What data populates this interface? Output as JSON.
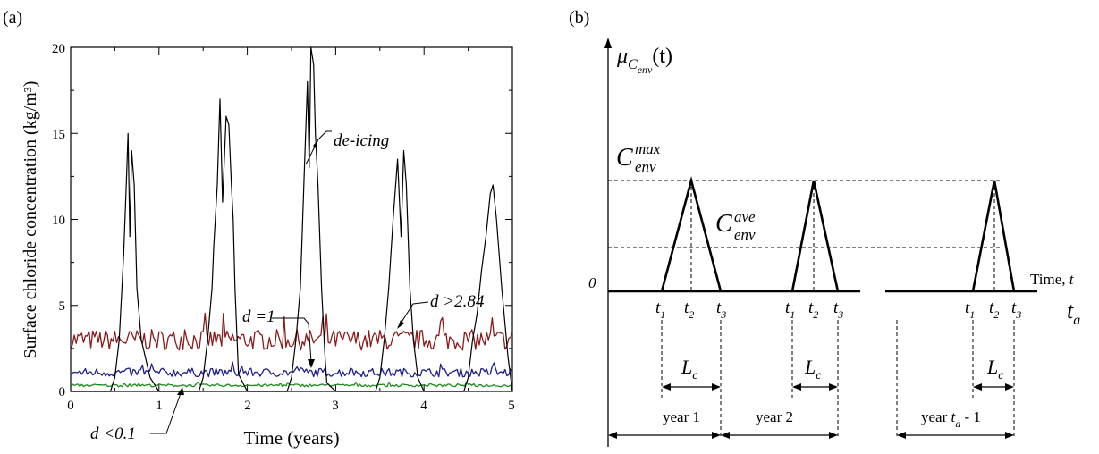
{
  "panel_a": {
    "label": "(a)",
    "ylabel": "Surface chloride concentration (kg/m³)",
    "xlabel": "Time (years)",
    "xticks": [
      "0",
      "1",
      "2",
      "3",
      "4",
      "5"
    ],
    "yticks": [
      "0",
      "5",
      "10",
      "15",
      "20"
    ],
    "annotations": [
      {
        "key": "deicing",
        "text": "de-icing"
      },
      {
        "key": "d1",
        "text": "d =1"
      },
      {
        "key": "d284",
        "text": "d >2.84"
      },
      {
        "key": "d01",
        "text": "d <0.1"
      }
    ]
  },
  "panel_b": {
    "label": "(b)",
    "y_axis_label": "μ",
    "y_axis_sub": "C",
    "y_axis_subsub": "env",
    "y_axis_paren": "(t)",
    "cmax_main": "C",
    "cmax_sup": "max",
    "cmax_sub": "env",
    "cave_main": "C",
    "cave_sup": "ave",
    "cave_sub": "env",
    "zero": "0",
    "time_label": "Time, ",
    "time_var": "t",
    "ta_main": "t",
    "ta_sub": "a",
    "t_main": "t",
    "t1_sub": "1",
    "t2_sub": "2",
    "t3_sub": "3",
    "lc_main": "L",
    "lc_sub": "c",
    "year1": "year 1",
    "year2": "year 2",
    "yeartaprefix": "year ",
    "yeartavar": "t",
    "yeartasub": "a",
    "yeartasuffix": " - 1"
  },
  "chart_data": [
    {
      "type": "line",
      "xlabel": "Time (years)",
      "ylabel": "Surface chloride concentration (kg/m³)",
      "xlim": [
        0,
        5
      ],
      "ylim": [
        0,
        20
      ],
      "series": [
        {
          "name": "de-icing",
          "color": "#000000",
          "x": [
            0,
            0.45,
            0.5,
            0.55,
            0.6,
            0.63,
            0.65,
            0.67,
            0.69,
            0.72,
            0.75,
            0.8,
            0.9,
            1.0,
            1.45,
            1.5,
            1.55,
            1.6,
            1.62,
            1.66,
            1.69,
            1.72,
            1.76,
            1.79,
            1.82,
            1.84,
            1.86,
            1.9,
            2.0,
            2.45,
            2.5,
            2.55,
            2.6,
            2.64,
            2.68,
            2.7,
            2.72,
            2.75,
            2.77,
            2.8,
            2.84,
            2.88,
            2.9,
            3.0,
            3.45,
            3.5,
            3.55,
            3.6,
            3.65,
            3.7,
            3.74,
            3.77,
            3.8,
            3.84,
            3.88,
            3.93,
            4.0,
            4.45,
            4.5,
            4.55,
            4.6,
            4.65,
            4.7,
            4.75,
            4.78,
            4.82,
            4.88,
            4.95,
            5.0
          ],
          "y": [
            0,
            0,
            0.8,
            3,
            8,
            12,
            15,
            9,
            14,
            12,
            6,
            3,
            0.8,
            0,
            0,
            0.8,
            3,
            6,
            8.5,
            12,
            17,
            11,
            16,
            15.5,
            12,
            10,
            6,
            1,
            0,
            0,
            0.8,
            3,
            6,
            12,
            18,
            13,
            20,
            19,
            15,
            12,
            6,
            2,
            0.5,
            0,
            0,
            0.8,
            3,
            6,
            10,
            13.5,
            9,
            14,
            12,
            6,
            3,
            0.8,
            0,
            0,
            0.8,
            3,
            4.5,
            7,
            9,
            11.5,
            12,
            10,
            6,
            2,
            0
          ]
        },
        {
          "name": "d >2.84",
          "color": "#8b1a1a",
          "base": 3.0,
          "amp": 0.6
        },
        {
          "name": "d =1",
          "color": "#1c1c8c",
          "base": 1.1,
          "amp": 0.25
        },
        {
          "name": "d <0.1",
          "color": "#1a8a1a",
          "base": 0.35,
          "amp": 0.08
        }
      ]
    },
    {
      "type": "line",
      "title": "",
      "series": [
        {
          "name": "year 1",
          "x": [
            "t1",
            "t2",
            "t3"
          ],
          "y": [
            "0",
            "C_env_max",
            "0"
          ]
        },
        {
          "name": "year 2",
          "x": [
            "t1",
            "t2",
            "t3"
          ],
          "y": [
            "0",
            "C_env_max",
            "0"
          ]
        },
        {
          "name": "year t_a - 1",
          "x": [
            "t1",
            "t2",
            "t3"
          ],
          "y": [
            "0",
            "C_env_max",
            "0"
          ]
        }
      ]
    }
  ]
}
